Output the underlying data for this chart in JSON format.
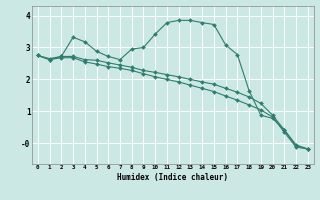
{
  "title": "",
  "xlabel": "Humidex (Indice chaleur)",
  "ylabel": "",
  "bg_color": "#cce8e4",
  "grid_color": "#ffffff",
  "line_color": "#2e7d6e",
  "xlim": [
    -0.5,
    23.5
  ],
  "ylim": [
    -0.65,
    4.3
  ],
  "xticks": [
    0,
    1,
    2,
    3,
    4,
    5,
    6,
    7,
    8,
    9,
    10,
    11,
    12,
    13,
    14,
    15,
    16,
    17,
    18,
    19,
    20,
    21,
    22,
    23
  ],
  "yticks": [
    0,
    1,
    2,
    3,
    4
  ],
  "ytick_labels": [
    "-0",
    "1",
    "2",
    "3",
    "4"
  ],
  "line1_x": [
    0,
    1,
    2,
    3,
    4,
    5,
    6,
    7,
    8,
    9,
    10,
    11,
    12,
    13,
    14,
    15,
    16,
    17,
    18,
    19,
    20,
    21,
    22,
    23
  ],
  "line1_y": [
    2.75,
    2.65,
    2.72,
    3.32,
    3.18,
    2.88,
    2.72,
    2.62,
    2.95,
    3.0,
    3.42,
    3.78,
    3.85,
    3.85,
    3.78,
    3.72,
    3.08,
    2.78,
    1.65,
    0.88,
    0.78,
    0.42,
    -0.05,
    -0.18
  ],
  "line2_x": [
    0,
    1,
    2,
    3,
    4,
    5,
    6,
    7,
    8,
    9,
    10,
    11,
    12,
    13,
    14,
    15,
    16,
    17,
    18,
    19,
    20,
    21,
    22,
    23
  ],
  "line2_y": [
    2.75,
    2.62,
    2.72,
    2.72,
    2.62,
    2.6,
    2.52,
    2.45,
    2.38,
    2.28,
    2.22,
    2.15,
    2.08,
    2.0,
    1.92,
    1.85,
    1.72,
    1.6,
    1.45,
    1.25,
    0.88,
    0.42,
    -0.08,
    -0.18
  ],
  "line3_x": [
    0,
    1,
    2,
    3,
    4,
    5,
    6,
    7,
    8,
    9,
    10,
    11,
    12,
    13,
    14,
    15,
    16,
    17,
    18,
    19,
    20,
    21,
    22,
    23
  ],
  "line3_y": [
    2.75,
    2.62,
    2.68,
    2.68,
    2.55,
    2.48,
    2.4,
    2.35,
    2.28,
    2.18,
    2.08,
    2.0,
    1.92,
    1.82,
    1.72,
    1.62,
    1.48,
    1.35,
    1.2,
    1.05,
    0.82,
    0.35,
    -0.12,
    -0.18
  ]
}
